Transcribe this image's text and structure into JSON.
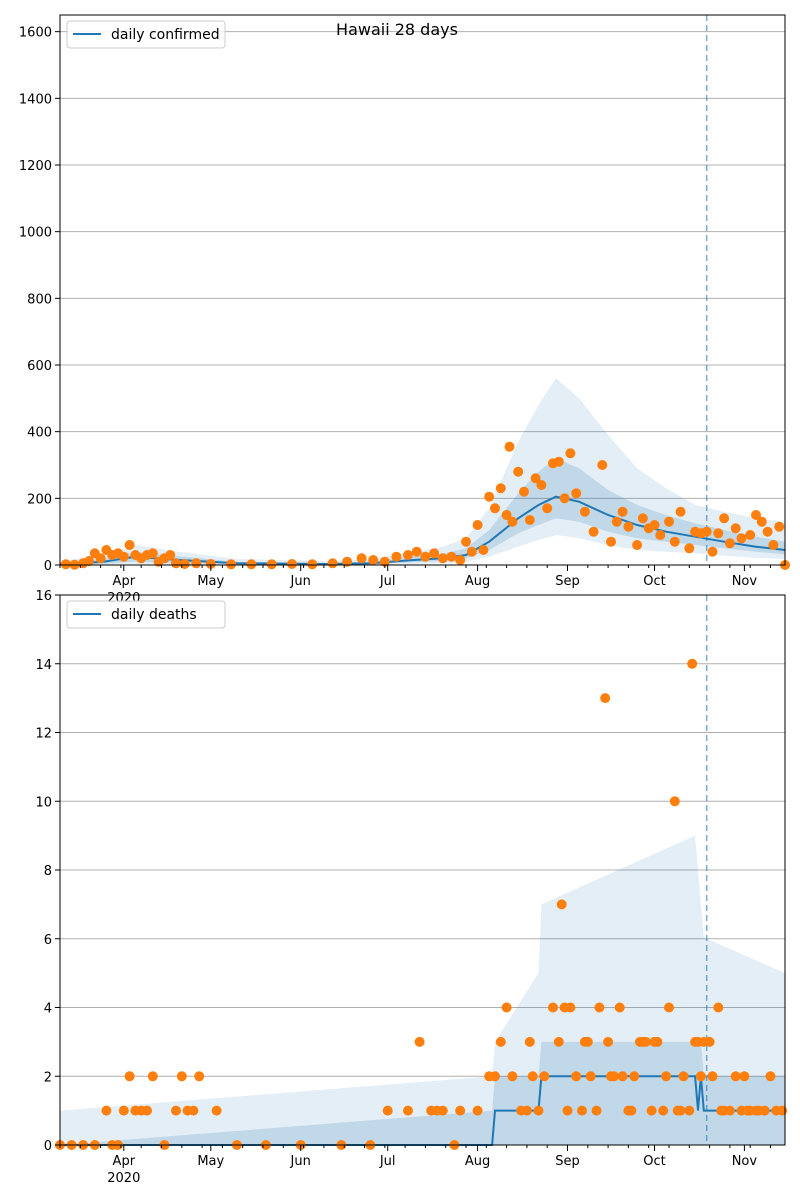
{
  "colors": {
    "line": "#1f77b4",
    "points": "#ff7f0e",
    "band": "#1f77b4",
    "grid": "#b0b0b0",
    "vline": "#1f77b4"
  },
  "chart_data": [
    {
      "type": "line",
      "title": "Hawaii 28 days",
      "legend": {
        "label": "daily confirmed",
        "placement": "top-left"
      },
      "ylim": [
        0,
        1650
      ],
      "yticks": [
        0,
        200,
        400,
        600,
        800,
        1000,
        1200,
        1400,
        1600
      ],
      "xlim": [
        "2020-03-10",
        "2020-11-15"
      ],
      "xticks": [
        {
          "date": "2020-04-01",
          "label": "Apr",
          "year": "2020"
        },
        {
          "date": "2020-05-01",
          "label": "May"
        },
        {
          "date": "2020-06-01",
          "label": "Jun"
        },
        {
          "date": "2020-07-01",
          "label": "Jul"
        },
        {
          "date": "2020-08-01",
          "label": "Aug"
        },
        {
          "date": "2020-09-01",
          "label": "Sep"
        },
        {
          "date": "2020-10-01",
          "label": "Oct"
        },
        {
          "date": "2020-11-01",
          "label": "Nov"
        }
      ],
      "vline": "2020-10-19",
      "grid": true,
      "model": {
        "x": [
          "2020-03-10",
          "2020-03-25",
          "2020-04-05",
          "2020-04-20",
          "2020-05-10",
          "2020-06-10",
          "2020-06-25",
          "2020-07-10",
          "2020-07-20",
          "2020-07-28",
          "2020-08-05",
          "2020-08-15",
          "2020-08-22",
          "2020-08-28",
          "2020-09-05",
          "2020-09-15",
          "2020-09-25",
          "2020-10-05",
          "2020-10-15",
          "2020-10-25",
          "2020-11-05",
          "2020-11-15"
        ],
        "median": [
          2,
          10,
          25,
          15,
          5,
          3,
          5,
          15,
          20,
          30,
          70,
          140,
          180,
          205,
          190,
          150,
          120,
          100,
          85,
          70,
          55,
          45
        ],
        "band_50": [
          [
            0,
            6
          ],
          [
            4,
            18
          ],
          [
            10,
            40
          ],
          [
            6,
            26
          ],
          [
            2,
            10
          ],
          [
            1,
            6
          ],
          [
            2,
            10
          ],
          [
            8,
            26
          ],
          [
            12,
            34
          ],
          [
            20,
            50
          ],
          [
            45,
            105
          ],
          [
            95,
            215
          ],
          [
            120,
            280
          ],
          [
            140,
            320
          ],
          [
            130,
            290
          ],
          [
            100,
            225
          ],
          [
            80,
            180
          ],
          [
            70,
            150
          ],
          [
            60,
            125
          ],
          [
            50,
            105
          ],
          [
            40,
            85
          ],
          [
            32,
            70
          ]
        ],
        "band_90": [
          [
            0,
            12
          ],
          [
            1,
            30
          ],
          [
            4,
            60
          ],
          [
            2,
            40
          ],
          [
            0,
            18
          ],
          [
            0,
            12
          ],
          [
            0,
            18
          ],
          [
            3,
            40
          ],
          [
            5,
            55
          ],
          [
            10,
            80
          ],
          [
            25,
            170
          ],
          [
            55,
            370
          ],
          [
            75,
            480
          ],
          [
            90,
            560
          ],
          [
            80,
            500
          ],
          [
            60,
            390
          ],
          [
            45,
            290
          ],
          [
            40,
            230
          ],
          [
            35,
            180
          ],
          [
            28,
            160
          ],
          [
            22,
            140
          ],
          [
            18,
            130
          ]
        ]
      },
      "observed": {
        "x": [
          "2020-03-12",
          "2020-03-15",
          "2020-03-18",
          "2020-03-20",
          "2020-03-22",
          "2020-03-24",
          "2020-03-26",
          "2020-03-28",
          "2020-03-30",
          "2020-04-01",
          "2020-04-03",
          "2020-04-05",
          "2020-04-07",
          "2020-04-09",
          "2020-04-11",
          "2020-04-13",
          "2020-04-15",
          "2020-04-17",
          "2020-04-19",
          "2020-04-22",
          "2020-04-26",
          "2020-05-01",
          "2020-05-08",
          "2020-05-15",
          "2020-05-22",
          "2020-05-29",
          "2020-06-05",
          "2020-06-12",
          "2020-06-17",
          "2020-06-22",
          "2020-06-26",
          "2020-06-30",
          "2020-07-04",
          "2020-07-08",
          "2020-07-11",
          "2020-07-14",
          "2020-07-17",
          "2020-07-20",
          "2020-07-23",
          "2020-07-26",
          "2020-07-28",
          "2020-07-30",
          "2020-08-01",
          "2020-08-03",
          "2020-08-05",
          "2020-08-07",
          "2020-08-09",
          "2020-08-11",
          "2020-08-12",
          "2020-08-13",
          "2020-08-15",
          "2020-08-17",
          "2020-08-19",
          "2020-08-21",
          "2020-08-23",
          "2020-08-25",
          "2020-08-27",
          "2020-08-29",
          "2020-08-31",
          "2020-09-02",
          "2020-09-04",
          "2020-09-07",
          "2020-09-10",
          "2020-09-13",
          "2020-09-16",
          "2020-09-18",
          "2020-09-20",
          "2020-09-22",
          "2020-09-25",
          "2020-09-27",
          "2020-09-29",
          "2020-10-01",
          "2020-10-03",
          "2020-10-06",
          "2020-10-08",
          "2020-10-10",
          "2020-10-13",
          "2020-10-15",
          "2020-10-17",
          "2020-10-19",
          "2020-10-21",
          "2020-10-23",
          "2020-10-25",
          "2020-10-27",
          "2020-10-29",
          "2020-10-31",
          "2020-11-03",
          "2020-11-05",
          "2020-11-07",
          "2020-11-09",
          "2020-11-11",
          "2020-11-13",
          "2020-11-15"
        ],
        "y": [
          2,
          1,
          5,
          12,
          35,
          20,
          45,
          30,
          35,
          25,
          60,
          30,
          20,
          30,
          35,
          10,
          20,
          30,
          5,
          3,
          5,
          3,
          2,
          2,
          2,
          3,
          2,
          5,
          10,
          20,
          15,
          10,
          25,
          30,
          40,
          25,
          35,
          20,
          25,
          15,
          70,
          40,
          120,
          45,
          205,
          170,
          230,
          150,
          355,
          130,
          280,
          220,
          135,
          260,
          240,
          170,
          305,
          310,
          200,
          335,
          215,
          160,
          100,
          300,
          70,
          130,
          160,
          115,
          60,
          140,
          110,
          120,
          90,
          130,
          70,
          160,
          50,
          100,
          95,
          100,
          40,
          95,
          140,
          65,
          110,
          80,
          90,
          150,
          130,
          100,
          60,
          115,
          0
        ]
      }
    },
    {
      "type": "line",
      "legend": {
        "label": "daily deaths",
        "placement": "top-left"
      },
      "ylim": [
        0,
        16
      ],
      "yticks": [
        0,
        2,
        4,
        6,
        8,
        10,
        12,
        14,
        16
      ],
      "xlim": [
        "2020-03-10",
        "2020-11-15"
      ],
      "xticks": [
        {
          "date": "2020-04-01",
          "label": "Apr",
          "year": "2020"
        },
        {
          "date": "2020-05-01",
          "label": "May"
        },
        {
          "date": "2020-06-01",
          "label": "Jun"
        },
        {
          "date": "2020-07-01",
          "label": "Jul"
        },
        {
          "date": "2020-08-01",
          "label": "Aug"
        },
        {
          "date": "2020-09-01",
          "label": "Sep"
        },
        {
          "date": "2020-10-01",
          "label": "Oct"
        },
        {
          "date": "2020-11-01",
          "label": "Nov"
        }
      ],
      "vline": "2020-10-19",
      "grid": true,
      "model": {
        "x": [
          "2020-03-10",
          "2020-08-06",
          "2020-08-07",
          "2020-08-22",
          "2020-08-23",
          "2020-10-15",
          "2020-10-16",
          "2020-10-17",
          "2020-10-18",
          "2020-10-19",
          "2020-11-15"
        ],
        "median": [
          0,
          0,
          1,
          1,
          2,
          2,
          1,
          2,
          1,
          1,
          1
        ],
        "band_50": [
          [
            0,
            0
          ],
          [
            0,
            1
          ],
          [
            0,
            2
          ],
          [
            0,
            2
          ],
          [
            0,
            3
          ],
          [
            0,
            3
          ],
          [
            0,
            3
          ],
          [
            0,
            3
          ],
          [
            0,
            2
          ],
          [
            0,
            2
          ],
          [
            0,
            2
          ]
        ],
        "band_90": [
          [
            0,
            1
          ],
          [
            0,
            2
          ],
          [
            0,
            3
          ],
          [
            0,
            5
          ],
          [
            0,
            7
          ],
          [
            0,
            9
          ],
          [
            0,
            8
          ],
          [
            0,
            7
          ],
          [
            0,
            6
          ],
          [
            0,
            6
          ],
          [
            0,
            5
          ]
        ]
      },
      "observed": {
        "x": [
          "2020-03-10",
          "2020-03-14",
          "2020-03-18",
          "2020-03-22",
          "2020-03-26",
          "2020-03-28",
          "2020-03-30",
          "2020-04-01",
          "2020-04-03",
          "2020-04-05",
          "2020-04-07",
          "2020-04-09",
          "2020-04-11",
          "2020-04-15",
          "2020-04-19",
          "2020-04-21",
          "2020-04-23",
          "2020-04-25",
          "2020-04-27",
          "2020-05-03",
          "2020-05-10",
          "2020-05-20",
          "2020-06-01",
          "2020-06-15",
          "2020-06-25",
          "2020-07-01",
          "2020-07-08",
          "2020-07-12",
          "2020-07-16",
          "2020-07-18",
          "2020-07-20",
          "2020-07-24",
          "2020-07-26",
          "2020-08-01",
          "2020-08-05",
          "2020-08-07",
          "2020-08-09",
          "2020-08-11",
          "2020-08-13",
          "2020-08-16",
          "2020-08-18",
          "2020-08-19",
          "2020-08-20",
          "2020-08-22",
          "2020-08-24",
          "2020-08-27",
          "2020-08-29",
          "2020-08-30",
          "2020-08-31",
          "2020-09-01",
          "2020-09-02",
          "2020-09-04",
          "2020-09-06",
          "2020-09-07",
          "2020-09-08",
          "2020-09-09",
          "2020-09-11",
          "2020-09-12",
          "2020-09-14",
          "2020-09-15",
          "2020-09-16",
          "2020-09-17",
          "2020-09-19",
          "2020-09-20",
          "2020-09-22",
          "2020-09-23",
          "2020-09-24",
          "2020-09-26",
          "2020-09-27",
          "2020-09-28",
          "2020-09-30",
          "2020-10-01",
          "2020-10-02",
          "2020-10-04",
          "2020-10-05",
          "2020-10-06",
          "2020-10-08",
          "2020-10-09",
          "2020-10-10",
          "2020-10-11",
          "2020-10-13",
          "2020-10-14",
          "2020-10-15",
          "2020-10-16",
          "2020-10-17",
          "2020-10-18",
          "2020-10-20",
          "2020-10-21",
          "2020-10-23",
          "2020-10-24",
          "2020-10-25",
          "2020-10-27",
          "2020-10-29",
          "2020-10-31",
          "2020-11-01",
          "2020-11-02",
          "2020-11-03",
          "2020-11-05",
          "2020-11-06",
          "2020-11-08",
          "2020-11-10",
          "2020-11-12",
          "2020-11-14"
        ],
        "y": [
          0,
          0,
          0,
          0,
          1,
          0,
          0,
          1,
          2,
          1,
          1,
          1,
          2,
          0,
          1,
          2,
          1,
          1,
          2,
          1,
          0,
          0,
          0,
          0,
          0,
          1,
          1,
          3,
          1,
          1,
          1,
          0,
          1,
          1,
          2,
          2,
          3,
          4,
          2,
          1,
          1,
          3,
          2,
          1,
          2,
          4,
          3,
          7,
          4,
          1,
          4,
          2,
          1,
          3,
          3,
          2,
          1,
          4,
          13,
          3,
          2,
          2,
          4,
          2,
          1,
          1,
          2,
          3,
          3,
          3,
          1,
          3,
          3,
          1,
          2,
          4,
          10,
          1,
          1,
          2,
          1,
          14,
          3,
          3,
          2,
          3,
          3,
          2,
          4,
          1,
          1,
          1,
          2,
          1,
          2,
          1,
          1,
          1,
          1,
          1,
          2,
          1,
          1
        ]
      }
    }
  ]
}
